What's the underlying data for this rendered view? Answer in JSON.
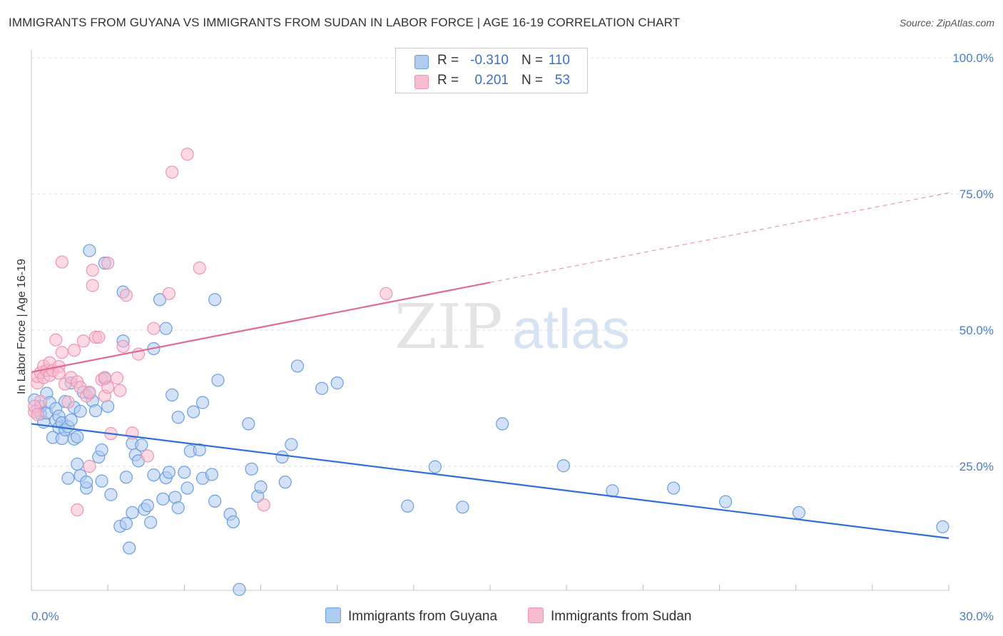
{
  "title": "IMMIGRANTS FROM GUYANA VS IMMIGRANTS FROM SUDAN IN LABOR FORCE | AGE 16-19 CORRELATION CHART",
  "source": "Source: ZipAtlas.com",
  "watermark": {
    "zip": "ZIP",
    "atlas": "atlas"
  },
  "legend": {
    "rows": [
      {
        "r_label": "R =",
        "r_value": "-0.310",
        "n_label": "N =",
        "n_value": "110"
      },
      {
        "r_label": "R =",
        "r_value": "0.201",
        "n_label": "N =",
        "n_value": "53"
      }
    ]
  },
  "colors": {
    "guyana_fill": "#aecbf0",
    "guyana_stroke": "#6a9ee0",
    "guyana_line": "#2f6fd6",
    "sudan_fill": "#f7bcd0",
    "sudan_stroke": "#ee94b3",
    "sudan_line": "#e06a93",
    "grid": "#dddddd",
    "axis_text": "#4a7dc8"
  },
  "chart_data": {
    "type": "scatter",
    "title": "IMMIGRANTS FROM GUYANA VS IMMIGRANTS FROM SUDAN IN LABOR FORCE | AGE 16-19 CORRELATION CHART",
    "xlabel": "",
    "ylabel": "In Labor Force | Age 16-19",
    "xlim": [
      0,
      30
    ],
    "ylim": [
      0,
      103
    ],
    "x_tick_labels": [
      "0.0%",
      "30.0%"
    ],
    "y_tick_labels": [
      "100.0%",
      "75.0%",
      "50.0%",
      "25.0%"
    ],
    "y_ticks": [
      100,
      75,
      50,
      25
    ],
    "grid": true,
    "legend_position": "top-center",
    "series": [
      {
        "name": "Immigrants from Guyana",
        "color": "#6a9ee0",
        "trend": {
          "x": [
            0,
            30
          ],
          "y": [
            32.8,
            11.8
          ],
          "solid_until": 30
        },
        "points": [
          [
            0.1,
            37.2
          ],
          [
            0.2,
            35.3
          ],
          [
            0.3,
            34.6
          ],
          [
            0.3,
            36.0
          ],
          [
            0.4,
            33.1
          ],
          [
            0.5,
            38.4
          ],
          [
            0.5,
            34.8
          ],
          [
            0.6,
            36.7
          ],
          [
            0.7,
            30.3
          ],
          [
            0.8,
            35.6
          ],
          [
            0.8,
            33.4
          ],
          [
            0.9,
            34.2
          ],
          [
            0.9,
            32.1
          ],
          [
            1.0,
            30.1
          ],
          [
            1.0,
            33.0
          ],
          [
            1.1,
            36.9
          ],
          [
            1.1,
            31.7
          ],
          [
            1.2,
            22.8
          ],
          [
            1.2,
            32.3
          ],
          [
            1.3,
            40.3
          ],
          [
            1.3,
            33.5
          ],
          [
            1.4,
            35.8
          ],
          [
            1.4,
            30.0
          ],
          [
            1.5,
            25.4
          ],
          [
            1.5,
            30.4
          ],
          [
            1.6,
            23.3
          ],
          [
            1.6,
            35.1
          ],
          [
            1.7,
            38.6
          ],
          [
            1.8,
            21.0
          ],
          [
            1.8,
            22.1
          ],
          [
            1.9,
            64.6
          ],
          [
            1.9,
            38.4
          ],
          [
            2.0,
            37.0
          ],
          [
            2.1,
            35.2
          ],
          [
            2.2,
            26.7
          ],
          [
            2.3,
            28.0
          ],
          [
            2.3,
            22.3
          ],
          [
            2.4,
            62.3
          ],
          [
            2.4,
            41.1
          ],
          [
            2.5,
            36.0
          ],
          [
            2.6,
            19.8
          ],
          [
            2.9,
            14.0
          ],
          [
            3.0,
            48.0
          ],
          [
            3.0,
            57.0
          ],
          [
            3.1,
            23.0
          ],
          [
            3.1,
            14.5
          ],
          [
            3.2,
            10.0
          ],
          [
            3.3,
            16.5
          ],
          [
            3.3,
            29.2
          ],
          [
            3.4,
            27.1
          ],
          [
            3.5,
            26.0
          ],
          [
            3.6,
            28.9
          ],
          [
            3.7,
            17.1
          ],
          [
            3.8,
            17.8
          ],
          [
            3.9,
            14.7
          ],
          [
            4.0,
            46.6
          ],
          [
            4.0,
            23.4
          ],
          [
            4.2,
            55.6
          ],
          [
            4.3,
            19.0
          ],
          [
            4.4,
            50.3
          ],
          [
            4.4,
            22.9
          ],
          [
            4.5,
            23.9
          ],
          [
            4.6,
            38.1
          ],
          [
            4.7,
            19.3
          ],
          [
            4.8,
            34.0
          ],
          [
            4.8,
            17.4
          ],
          [
            5.0,
            23.9
          ],
          [
            5.1,
            21.0
          ],
          [
            5.2,
            27.8
          ],
          [
            5.3,
            35.0
          ],
          [
            5.5,
            28.0
          ],
          [
            5.6,
            36.7
          ],
          [
            5.6,
            22.8
          ],
          [
            5.9,
            23.5
          ],
          [
            6.0,
            55.6
          ],
          [
            6.0,
            18.6
          ],
          [
            6.1,
            40.8
          ],
          [
            6.5,
            16.2
          ],
          [
            6.6,
            14.8
          ],
          [
            6.8,
            2.4
          ],
          [
            7.1,
            32.8
          ],
          [
            7.2,
            24.5
          ],
          [
            7.4,
            19.5
          ],
          [
            7.5,
            21.2
          ],
          [
            8.2,
            26.7
          ],
          [
            8.3,
            22.1
          ],
          [
            8.5,
            29.0
          ],
          [
            8.7,
            43.4
          ],
          [
            9.5,
            39.3
          ],
          [
            10.0,
            40.3
          ],
          [
            12.3,
            17.7
          ],
          [
            13.2,
            24.9
          ],
          [
            14.1,
            17.5
          ],
          [
            15.4,
            32.8
          ],
          [
            17.4,
            25.1
          ],
          [
            19.0,
            20.5
          ],
          [
            21.0,
            21.0
          ],
          [
            22.7,
            18.5
          ],
          [
            25.1,
            16.5
          ],
          [
            29.8,
            13.9
          ]
        ]
      },
      {
        "name": "Immigrants from Sudan",
        "color": "#ee94b3",
        "trend": {
          "x": [
            0,
            15,
            30
          ],
          "y": [
            42.3,
            58.7,
            75.2
          ],
          "solid_until": 15
        },
        "points": [
          [
            0.1,
            35.0
          ],
          [
            0.2,
            40.3
          ],
          [
            0.2,
            41.5
          ],
          [
            0.3,
            42.2
          ],
          [
            0.3,
            36.9
          ],
          [
            0.4,
            43.4
          ],
          [
            0.4,
            41.3
          ],
          [
            0.5,
            42.6
          ],
          [
            0.6,
            44.0
          ],
          [
            0.6,
            41.7
          ],
          [
            0.7,
            42.6
          ],
          [
            0.8,
            48.2
          ],
          [
            0.9,
            43.3
          ],
          [
            0.9,
            42.1
          ],
          [
            1.0,
            62.5
          ],
          [
            1.0,
            45.9
          ],
          [
            1.1,
            40.1
          ],
          [
            1.2,
            36.8
          ],
          [
            1.3,
            41.3
          ],
          [
            1.4,
            46.3
          ],
          [
            1.5,
            17.0
          ],
          [
            1.5,
            40.5
          ],
          [
            1.6,
            39.5
          ],
          [
            1.7,
            48.0
          ],
          [
            1.8,
            37.9
          ],
          [
            1.9,
            38.6
          ],
          [
            1.9,
            25.0
          ],
          [
            2.0,
            58.2
          ],
          [
            2.0,
            61.0
          ],
          [
            2.1,
            48.7
          ],
          [
            2.2,
            48.7
          ],
          [
            2.3,
            40.9
          ],
          [
            2.4,
            41.3
          ],
          [
            2.4,
            37.9
          ],
          [
            2.5,
            62.3
          ],
          [
            2.5,
            39.5
          ],
          [
            2.6,
            31.0
          ],
          [
            2.8,
            41.2
          ],
          [
            2.9,
            38.9
          ],
          [
            3.0,
            47.0
          ],
          [
            3.1,
            56.4
          ],
          [
            3.3,
            31.1
          ],
          [
            3.5,
            45.6
          ],
          [
            3.8,
            26.9
          ],
          [
            4.0,
            50.3
          ],
          [
            4.5,
            56.7
          ],
          [
            4.6,
            79.0
          ],
          [
            5.1,
            82.3
          ],
          [
            5.5,
            61.4
          ],
          [
            7.6,
            17.9
          ],
          [
            11.6,
            56.7
          ],
          [
            0.1,
            36.0
          ],
          [
            0.2,
            34.5
          ]
        ]
      }
    ]
  },
  "bottom_legend": {
    "items": [
      {
        "label": "Immigrants from Guyana"
      },
      {
        "label": "Immigrants from Sudan"
      }
    ]
  }
}
